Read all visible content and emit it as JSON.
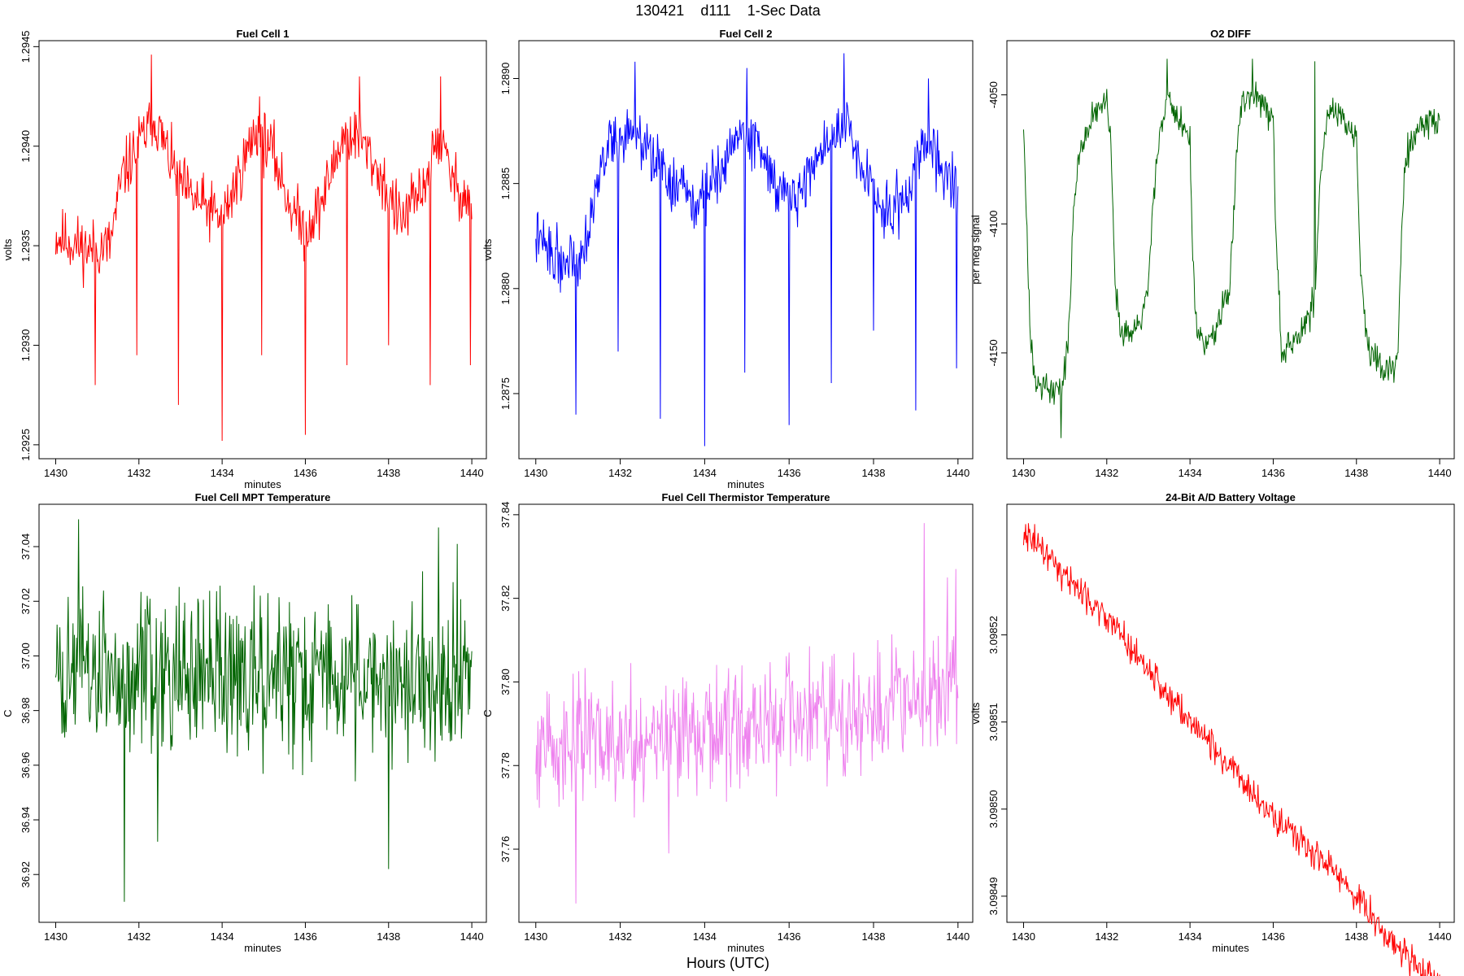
{
  "figure": {
    "title": "130421    d111    1-Sec Data",
    "xlabel_common": "Hours (UTC)"
  },
  "chart_data": [
    {
      "type": "line",
      "title": "Fuel Cell 1",
      "xlabel": "minutes",
      "ylabel": "volts",
      "color": "#ff0000",
      "xlim": [
        1429.6,
        1440.35
      ],
      "ylim": [
        1.29243,
        1.29453
      ],
      "xticks": [
        1430,
        1432,
        1434,
        1436,
        1438,
        1440
      ],
      "yticks": [
        1.2925,
        1.293,
        1.2935,
        1.294,
        1.2945
      ],
      "ytick_labels": [
        "1.2925",
        "1.2930",
        "1.2935",
        "1.2940",
        "1.2945"
      ],
      "baseline": [
        [
          1430,
          1.29355
        ],
        [
          1430.8,
          1.29348
        ],
        [
          1431.3,
          1.2935
        ],
        [
          1431.6,
          1.29385
        ],
        [
          1432.1,
          1.29405
        ],
        [
          1432.4,
          1.29413
        ],
        [
          1432.8,
          1.2939
        ],
        [
          1433.2,
          1.29375
        ],
        [
          1433.7,
          1.29368
        ],
        [
          1434.0,
          1.29363
        ],
        [
          1434.4,
          1.29385
        ],
        [
          1434.8,
          1.29408
        ],
        [
          1435.2,
          1.29398
        ],
        [
          1435.6,
          1.29372
        ],
        [
          1436.0,
          1.29357
        ],
        [
          1436.4,
          1.29372
        ],
        [
          1436.9,
          1.29405
        ],
        [
          1437.3,
          1.29405
        ],
        [
          1437.8,
          1.29385
        ],
        [
          1438.3,
          1.29362
        ],
        [
          1438.8,
          1.29378
        ],
        [
          1439.2,
          1.29405
        ],
        [
          1439.6,
          1.2938
        ],
        [
          1440,
          1.29372
        ]
      ],
      "noise": 0.00011,
      "seed": 11,
      "spikes": [
        [
          1430.95,
          1.2928
        ],
        [
          1431.95,
          1.29295
        ],
        [
          1432.95,
          1.2927
        ],
        [
          1434.0,
          1.29252
        ],
        [
          1434.95,
          1.29295
        ],
        [
          1436.0,
          1.29255
        ],
        [
          1437.0,
          1.2929
        ],
        [
          1438.0,
          1.293
        ],
        [
          1439.0,
          1.2928
        ],
        [
          1439.97,
          1.2929
        ]
      ],
      "peaks": [
        [
          1432.3,
          1.29446
        ],
        [
          1437.3,
          1.29435
        ],
        [
          1439.25,
          1.29435
        ],
        [
          1434.9,
          1.29425
        ]
      ]
    },
    {
      "type": "line",
      "title": "Fuel Cell 2",
      "xlabel": "minutes",
      "ylabel": "volts",
      "color": "#0000ff",
      "xlim": [
        1429.6,
        1440.35
      ],
      "ylim": [
        1.28719,
        1.28918
      ],
      "xticks": [
        1430,
        1432,
        1434,
        1436,
        1438,
        1440
      ],
      "yticks": [
        1.2875,
        1.288,
        1.2885,
        1.289
      ],
      "ytick_labels": [
        "1.2875",
        "1.2880",
        "1.2885",
        "1.2890"
      ],
      "baseline": [
        [
          1430,
          1.28825
        ],
        [
          1430.6,
          1.28812
        ],
        [
          1431.1,
          1.28818
        ],
        [
          1431.4,
          1.28845
        ],
        [
          1431.7,
          1.28868
        ],
        [
          1432.2,
          1.28875
        ],
        [
          1432.7,
          1.28865
        ],
        [
          1433.2,
          1.2885
        ],
        [
          1433.8,
          1.2884
        ],
        [
          1434.3,
          1.28855
        ],
        [
          1434.8,
          1.28875
        ],
        [
          1435.3,
          1.28868
        ],
        [
          1435.8,
          1.28845
        ],
        [
          1436.2,
          1.28845
        ],
        [
          1436.8,
          1.28868
        ],
        [
          1437.3,
          1.28878
        ],
        [
          1437.8,
          1.28855
        ],
        [
          1438.3,
          1.28835
        ],
        [
          1438.8,
          1.28845
        ],
        [
          1439.2,
          1.28872
        ],
        [
          1439.6,
          1.28858
        ],
        [
          1440,
          1.28848
        ]
      ],
      "noise": 0.0001,
      "seed": 22,
      "spikes": [
        [
          1430.95,
          1.2874
        ],
        [
          1431.95,
          1.2877
        ],
        [
          1432.95,
          1.28738
        ],
        [
          1434.0,
          1.28725
        ],
        [
          1434.95,
          1.2876
        ],
        [
          1436.0,
          1.28735
        ],
        [
          1437.0,
          1.28755
        ],
        [
          1438.0,
          1.2878
        ],
        [
          1439.0,
          1.28742
        ],
        [
          1439.97,
          1.28762
        ]
      ],
      "peaks": [
        [
          1432.35,
          1.28908
        ],
        [
          1437.3,
          1.28912
        ],
        [
          1435.0,
          1.28905
        ],
        [
          1439.3,
          1.289
        ]
      ]
    },
    {
      "type": "line",
      "title": "O2 DIFF",
      "xlabel": "",
      "ylabel": "per meg signal",
      "color": "#006400",
      "xlim": [
        1429.6,
        1440.35
      ],
      "ylim": [
        -4191,
        -4029
      ],
      "xticks": [
        1430,
        1432,
        1434,
        1436,
        1438,
        1440
      ],
      "yticks": [
        -4150,
        -4100,
        -4050
      ],
      "ytick_labels": [
        "-4150",
        "-4100",
        "-4050"
      ],
      "baseline": [
        [
          1430,
          -4060
        ],
        [
          1430.06,
          -4095
        ],
        [
          1430.15,
          -4140
        ],
        [
          1430.3,
          -4160
        ],
        [
          1430.7,
          -4165
        ],
        [
          1430.9,
          -4163
        ],
        [
          1431.0,
          -4155
        ],
        [
          1431.1,
          -4140
        ],
        [
          1431.2,
          -4095
        ],
        [
          1431.35,
          -4070
        ],
        [
          1431.6,
          -4060
        ],
        [
          1432.0,
          -4052
        ],
        [
          1432.1,
          -4070
        ],
        [
          1432.2,
          -4125
        ],
        [
          1432.35,
          -4145
        ],
        [
          1432.6,
          -4143
        ],
        [
          1432.8,
          -4137
        ],
        [
          1433.0,
          -4125
        ],
        [
          1433.1,
          -4095
        ],
        [
          1433.25,
          -4065
        ],
        [
          1433.5,
          -4052
        ],
        [
          1434.0,
          -4068
        ],
        [
          1434.05,
          -4105
        ],
        [
          1434.15,
          -4140
        ],
        [
          1434.4,
          -4148
        ],
        [
          1434.7,
          -4138
        ],
        [
          1434.95,
          -4125
        ],
        [
          1435.05,
          -4095
        ],
        [
          1435.2,
          -4055
        ],
        [
          1435.6,
          -4050
        ],
        [
          1436.0,
          -4057
        ],
        [
          1436.05,
          -4095
        ],
        [
          1436.2,
          -4150
        ],
        [
          1436.5,
          -4145
        ],
        [
          1436.8,
          -4138
        ],
        [
          1437.0,
          -4130
        ],
        [
          1437.1,
          -4090
        ],
        [
          1437.3,
          -4055
        ],
        [
          1437.6,
          -4058
        ],
        [
          1438.0,
          -4068
        ],
        [
          1438.1,
          -4120
        ],
        [
          1438.3,
          -4150
        ],
        [
          1438.8,
          -4158
        ],
        [
          1439.0,
          -4150
        ],
        [
          1439.05,
          -4120
        ],
        [
          1439.15,
          -4075
        ],
        [
          1439.4,
          -4065
        ],
        [
          1440,
          -4058
        ]
      ],
      "noise": 4.5,
      "seed": 33,
      "spikes": [],
      "peaks": [
        [
          1433.45,
          -4036
        ],
        [
          1435.5,
          -4036
        ],
        [
          1437.0,
          -4037
        ],
        [
          1430.9,
          -4183
        ]
      ]
    },
    {
      "type": "line",
      "title": "Fuel Cell MPT Temperature",
      "xlabel": "minutes",
      "ylabel": "C",
      "color": "#006400",
      "xlim": [
        1429.6,
        1440.35
      ],
      "ylim": [
        36.9025,
        37.0555
      ],
      "xticks": [
        1430,
        1432,
        1434,
        1436,
        1438,
        1440
      ],
      "yticks": [
        36.92,
        36.94,
        36.96,
        36.98,
        37.0,
        37.02,
        37.04
      ],
      "ytick_labels": [
        "36.92",
        "36.94",
        "36.96",
        "36.98",
        "37.00",
        "37.02",
        "37.04"
      ],
      "baseline": [
        [
          1430,
          36.993
        ],
        [
          1435,
          36.992
        ],
        [
          1440,
          36.993
        ]
      ],
      "noise": 0.021,
      "seed": 44,
      "spikes": [
        [
          1431.65,
          36.91
        ],
        [
          1438.0,
          36.922
        ],
        [
          1432.45,
          36.932
        ]
      ],
      "peaks": [
        [
          1430.55,
          37.05
        ],
        [
          1439.2,
          37.047
        ],
        [
          1439.65,
          37.041
        ]
      ]
    },
    {
      "type": "line",
      "title": "Fuel Cell Thermistor Temperature",
      "xlabel": "minutes",
      "ylabel": "C",
      "color": "#ee82ee",
      "xlim": [
        1429.6,
        1440.35
      ],
      "ylim": [
        37.7425,
        37.8425
      ],
      "xticks": [
        1430,
        1432,
        1434,
        1436,
        1438,
        1440
      ],
      "yticks": [
        37.76,
        37.78,
        37.8,
        37.82,
        37.84
      ],
      "ytick_labels": [
        "37.76",
        "37.78",
        "37.80",
        "37.82",
        "37.84"
      ],
      "baseline": [
        [
          1430,
          37.785
        ],
        [
          1433,
          37.787
        ],
        [
          1436,
          37.79
        ],
        [
          1438,
          37.793
        ],
        [
          1440,
          37.797
        ]
      ],
      "noise": 0.0105,
      "seed": 55,
      "spikes": [
        [
          1430.95,
          37.747
        ],
        [
          1433.15,
          37.759
        ]
      ],
      "peaks": [
        [
          1439.2,
          37.838
        ],
        [
          1439.95,
          37.827
        ],
        [
          1439.75,
          37.825
        ]
      ]
    },
    {
      "type": "line",
      "title": "24-Bit A/D Battery Voltage",
      "xlabel": "minutes",
      "ylabel": "volts",
      "color": "#ff0000",
      "xlim": [
        1429.6,
        1440.35
      ],
      "ylim": [
        3.098487,
        3.098535
      ],
      "xticks": [
        1430,
        1432,
        1434,
        1436,
        1438,
        1440
      ],
      "yticks": [
        3.09849,
        3.0985,
        3.09851,
        3.09852
      ],
      "ytick_labels": [
        "3.09849",
        "3.09850",
        "3.09851",
        "3.09852"
      ],
      "baseline": [
        [
          1430,
          3.098532
        ],
        [
          1431,
          3.098527
        ],
        [
          1432,
          3.098522
        ],
        [
          1433,
          3.098516
        ],
        [
          1434,
          3.09851
        ],
        [
          1435,
          3.098505
        ],
        [
          1436,
          3.098499
        ],
        [
          1437,
          3.098495
        ],
        [
          1438,
          3.09849
        ],
        [
          1439,
          3.098484
        ],
        [
          1440,
          3.09848
        ]
      ],
      "noise": 1.3e-06,
      "seed": 66,
      "spikes": [],
      "peaks": []
    }
  ]
}
